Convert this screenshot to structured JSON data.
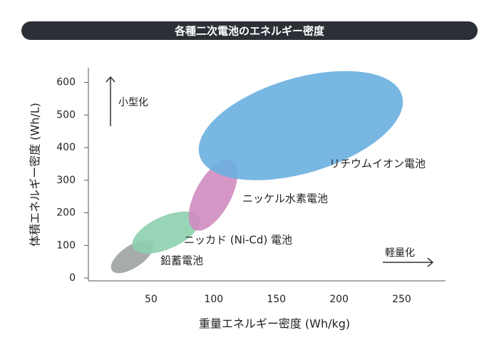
{
  "chart_data": {
    "type": "region",
    "title": "各種二次電池のエネルギー密度",
    "x_label": "重量エネルギー密度 (Wh/kg)",
    "y_label": "体積エネルギー密度 (Wh/L)",
    "annotations": [
      "小型化",
      "軽量化"
    ],
    "xlim": [
      0,
      285
    ],
    "ylim": [
      0,
      645
    ],
    "xticks": [
      50,
      100,
      150,
      200,
      250
    ],
    "yticks": [
      0,
      100,
      200,
      300,
      400,
      500,
      600
    ],
    "series": [
      {
        "name": "鉛蓄電池",
        "color": "#9ea2a2",
        "x": [
          18,
          52
        ],
        "y": [
          15,
          116
        ]
      },
      {
        "name": "ニッカド (Ni-Cd) 電池",
        "color": "#8dd0ae",
        "x": [
          35,
          89
        ],
        "y": [
          75,
          204
        ]
      },
      {
        "name": "ニッケル水素電池",
        "color": "#cf8cc0",
        "x": [
          80,
          119
        ],
        "y": [
          145,
          363
        ]
      },
      {
        "name": "リチウムイオン電池",
        "color": "#6aafe0",
        "x": [
          88,
          251
        ],
        "y": [
          300,
          635
        ]
      }
    ]
  }
}
